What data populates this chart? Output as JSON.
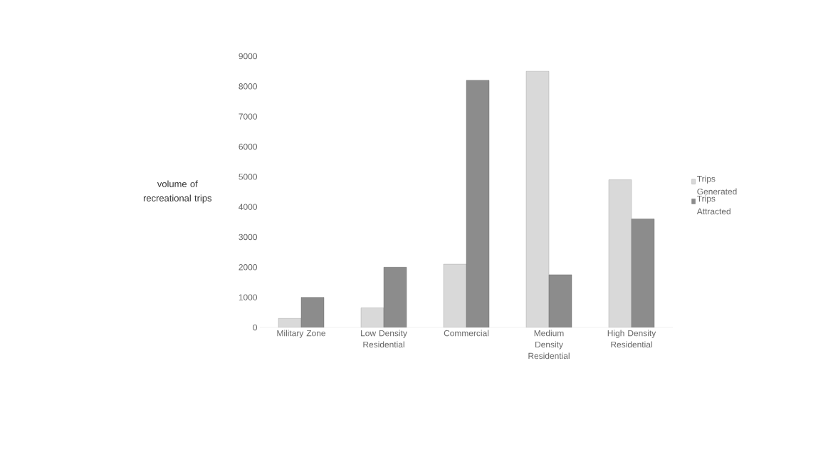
{
  "chart_data": {
    "type": "bar",
    "ylabel": "volume of recreational trips",
    "categories": [
      "Military Zone",
      "Low Density Residential",
      "Commercial",
      "Medium Density Residential",
      "High Density Residential"
    ],
    "series": [
      {
        "name": "Trips Generated",
        "color": "#d9d9d9",
        "values": [
          300,
          650,
          2100,
          8500,
          4900
        ]
      },
      {
        "name": "Trips Attracted",
        "color": "#8c8c8c",
        "values": [
          1000,
          2000,
          8200,
          1750,
          3600
        ]
      }
    ],
    "ylim": [
      0,
      9000
    ],
    "yticks": [
      0,
      1000,
      2000,
      3000,
      4000,
      5000,
      6000,
      7000,
      8000,
      9000
    ],
    "grid": false,
    "legend": "right"
  }
}
